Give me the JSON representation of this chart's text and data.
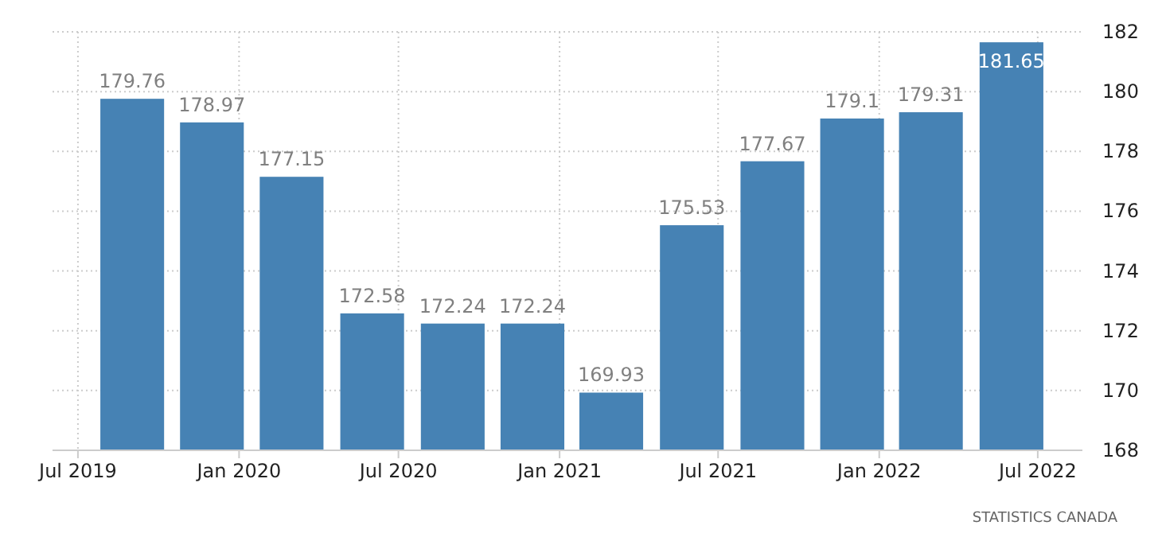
{
  "chart_data": {
    "type": "bar",
    "x": [
      "2019-09",
      "2019-12",
      "2020-03",
      "2020-06",
      "2020-09",
      "2020-12",
      "2021-03",
      "2021-06",
      "2021-09",
      "2021-12",
      "2022-03",
      "2022-06"
    ],
    "values": [
      179.76,
      178.97,
      177.15,
      172.58,
      172.24,
      172.24,
      169.93,
      175.53,
      177.67,
      179.1,
      179.31,
      181.65
    ],
    "color": "#4682b4",
    "data_labels": true,
    "xlim": [
      "2019-06-02",
      "2022-08-21"
    ],
    "xticks": [
      {
        "value": "2019-07",
        "label": "Jul 2019"
      },
      {
        "value": "2020-01",
        "label": "Jan 2020"
      },
      {
        "value": "2020-07",
        "label": "Jul 2020"
      },
      {
        "value": "2021-01",
        "label": "Jan 2021"
      },
      {
        "value": "2021-07",
        "label": "Jul 2021"
      },
      {
        "value": "2022-01",
        "label": "Jan 2022"
      },
      {
        "value": "2022-07",
        "label": "Jul 2022"
      }
    ],
    "ylim": [
      168,
      182
    ],
    "yticks": [
      168,
      170,
      172,
      174,
      176,
      178,
      180,
      182
    ],
    "grid": true,
    "annotations": [
      "STATISTICS CANADA"
    ]
  }
}
